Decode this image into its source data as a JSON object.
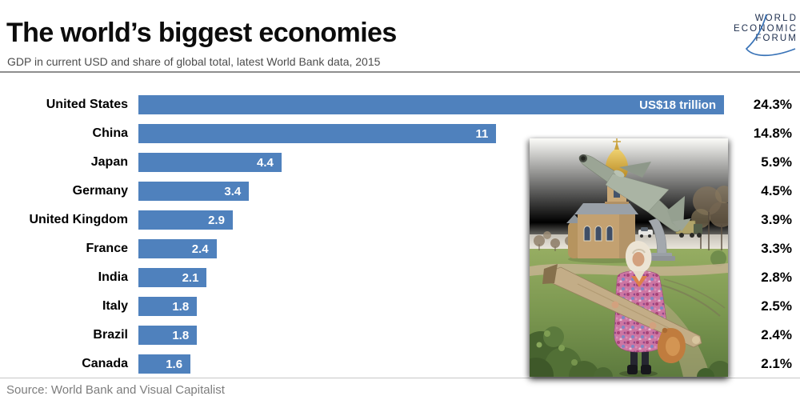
{
  "logo": {
    "lines": [
      "WORLD",
      "ECONOMIC",
      "FORUM"
    ]
  },
  "colors": {
    "bar": "#4f81bd",
    "logo_navy": "#20304f",
    "logo_swoosh": "#2e6cb3"
  },
  "chart_data": {
    "type": "bar",
    "orientation": "horizontal",
    "title": "The world’s biggest economies",
    "subtitle": "GDP in current USD and share of global total, latest World Bank data, 2015",
    "source": "Source: World Bank and Visual Capitalist",
    "value_unit": "USD trillions",
    "xlim": [
      0,
      18
    ],
    "grid": false,
    "legend": false,
    "categories": [
      "United States",
      "China",
      "Japan",
      "Germany",
      "United Kingdom",
      "France",
      "India",
      "Italy",
      "Brazil",
      "Canada"
    ],
    "items": [
      {
        "label": "United States",
        "value": 18,
        "value_label": "US$18 trillion",
        "share": "24.3%"
      },
      {
        "label": "China",
        "value": 11,
        "value_label": "11",
        "share": "14.8%"
      },
      {
        "label": "Japan",
        "value": 4.4,
        "value_label": "4.4",
        "share": "5.9%"
      },
      {
        "label": "Germany",
        "value": 3.4,
        "value_label": "3.4",
        "share": "4.5%"
      },
      {
        "label": "United Kingdom",
        "value": 2.9,
        "value_label": "2.9",
        "share": "3.9%"
      },
      {
        "label": "France",
        "value": 2.4,
        "value_label": "2.4",
        "share": "3.3%"
      },
      {
        "label": "India",
        "value": 2.1,
        "value_label": "2.1",
        "share": "2.8%"
      },
      {
        "label": "Italy",
        "value": 1.8,
        "value_label": "1.8",
        "share": "2.5%"
      },
      {
        "label": "Brazil",
        "value": 1.8,
        "value_label": "1.8",
        "share": "2.4%"
      },
      {
        "label": "Canada",
        "value": 1.6,
        "value_label": "1.6",
        "share": "2.1%"
      }
    ]
  }
}
